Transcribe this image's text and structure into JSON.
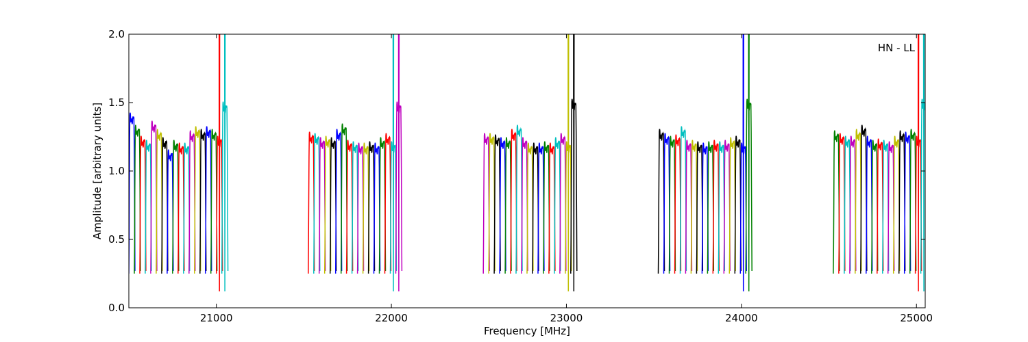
{
  "chart_data": {
    "type": "line",
    "xlabel": "Frequency [MHz]",
    "ylabel": "Amplitude [arbitrary units]",
    "annotation": "HN - LL",
    "xlim": [
      20500,
      25050
    ],
    "ylim": [
      0.0,
      2.0
    ],
    "xticks": [
      21000,
      22000,
      23000,
      24000,
      25000
    ],
    "xtick_labels": [
      "21000",
      "22000",
      "23000",
      "24000",
      "25000"
    ],
    "yticks": [
      0.0,
      0.5,
      1.0,
      1.5,
      2.0
    ],
    "ytick_labels": [
      "0.0",
      "0.5",
      "1.0",
      "1.5",
      "2.0"
    ],
    "grid": false,
    "color_cycle": [
      "#0000ff",
      "#008000",
      "#ff0000",
      "#00bfbf",
      "#bf00bf",
      "#bfbf00",
      "#000000"
    ],
    "channel_width_mhz": 31.25,
    "subbands": [
      {
        "start": 20500,
        "first_color": 0,
        "peak_channels": [
          0,
          1,
          16,
          17
        ],
        "levels": [
          1.42,
          1.33,
          1.25,
          1.22,
          1.36,
          1.3,
          1.24,
          1.15,
          1.22,
          1.2,
          1.2,
          1.29,
          1.32,
          1.3,
          1.32,
          1.3,
          1.25,
          1.5
        ]
      },
      {
        "start": 21525,
        "first_color": 2,
        "peak_channels": [
          15,
          16
        ],
        "levels": [
          1.28,
          1.27,
          1.24,
          1.25,
          1.24,
          1.3,
          1.34,
          1.22,
          1.21,
          1.2,
          1.2,
          1.21,
          1.2,
          1.24,
          1.27,
          1.21,
          1.5
        ]
      },
      {
        "start": 22525,
        "first_color": 4,
        "peak_channels": [
          15,
          16
        ],
        "levels": [
          1.27,
          1.27,
          1.26,
          1.24,
          1.24,
          1.3,
          1.33,
          1.24,
          1.2,
          1.2,
          1.2,
          1.21,
          1.2,
          1.24,
          1.27,
          1.21,
          1.52
        ]
      },
      {
        "start": 23525,
        "first_color": 6,
        "peak_channels": [
          15,
          16
        ],
        "levels": [
          1.3,
          1.27,
          1.25,
          1.26,
          1.32,
          1.22,
          1.22,
          1.21,
          1.2,
          1.21,
          1.22,
          1.21,
          1.22,
          1.24,
          1.25,
          1.2,
          1.52
        ]
      },
      {
        "start": 24525,
        "first_color": 1,
        "peak_channels": [
          15,
          16
        ],
        "levels": [
          1.29,
          1.27,
          1.25,
          1.25,
          1.3,
          1.33,
          1.25,
          1.22,
          1.23,
          1.22,
          1.21,
          1.25,
          1.29,
          1.28,
          1.3,
          1.25,
          1.52
        ]
      }
    ]
  }
}
